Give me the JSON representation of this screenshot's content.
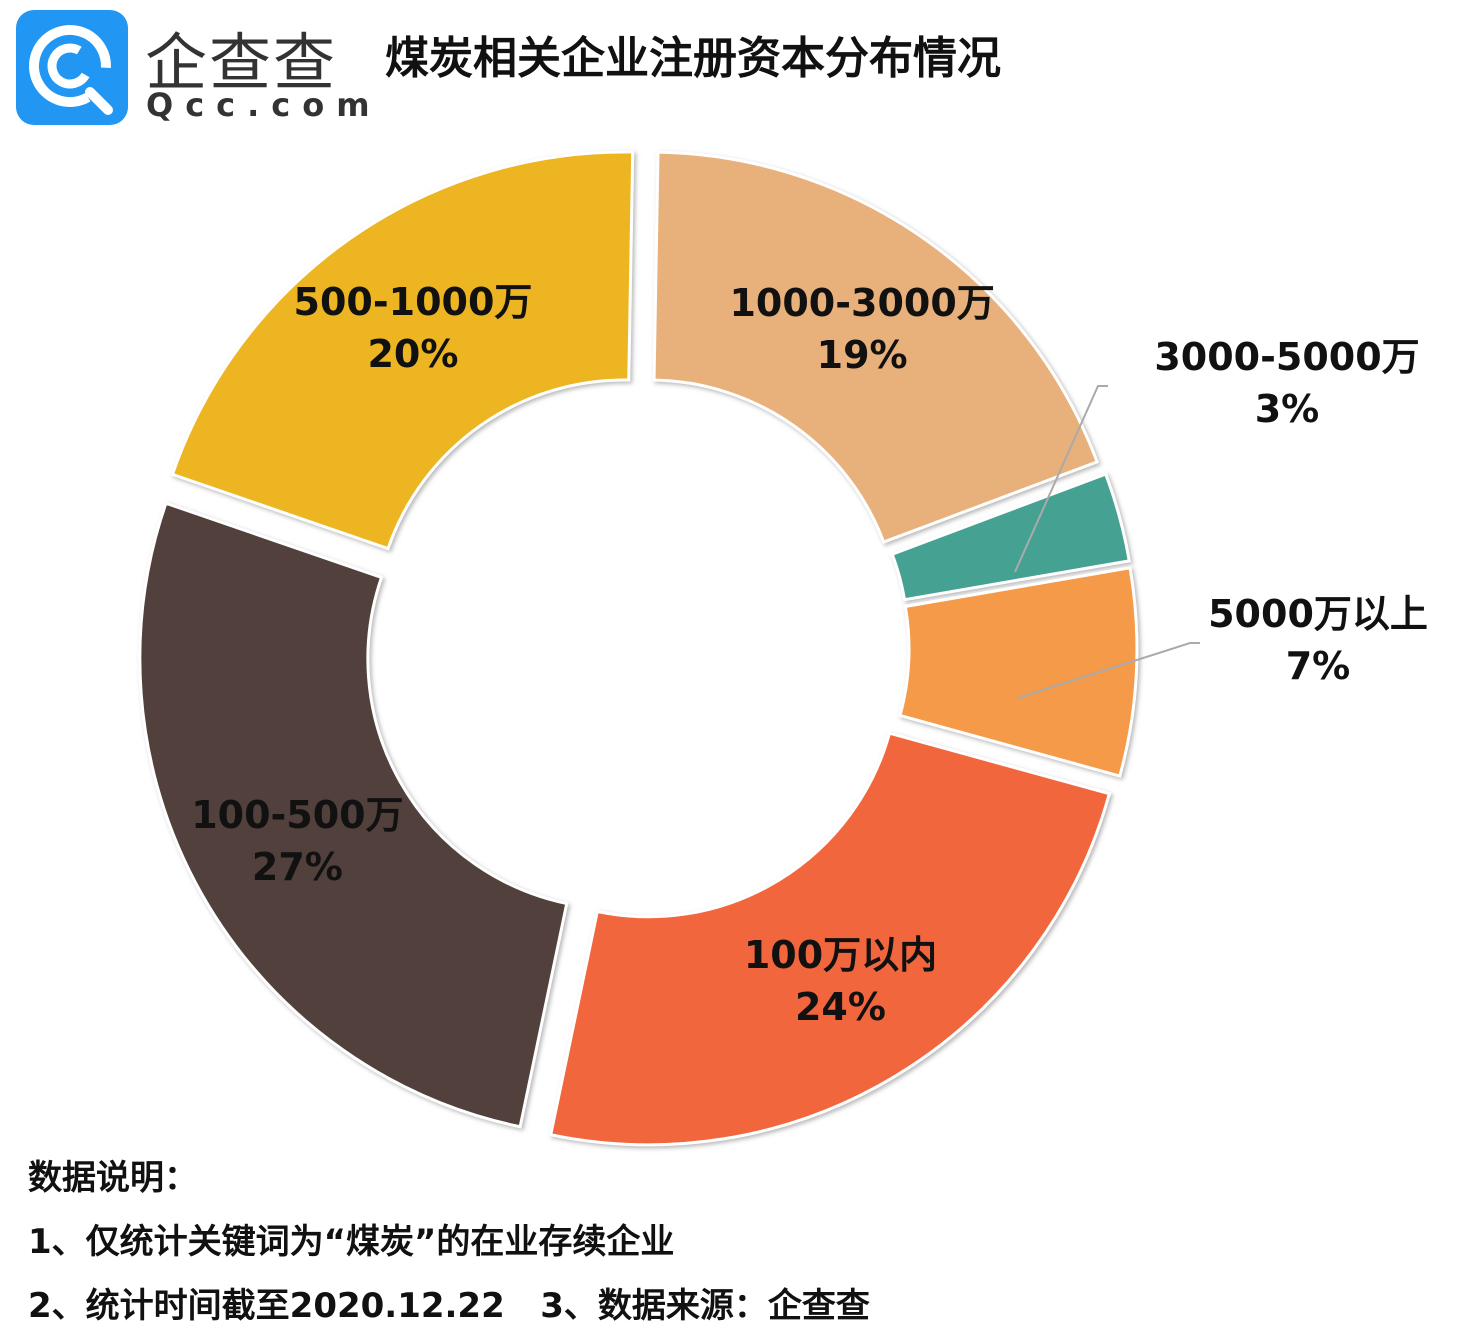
{
  "logo": {
    "name_cn": "企查查",
    "name_en": "Qcc.com",
    "color": "#2196f3"
  },
  "title": "煤炭相关企业注册资本分布情况",
  "chart_data": {
    "type": "pie",
    "donut": true,
    "title": "煤炭相关企业注册资本分布情况",
    "unit": "%",
    "slices": [
      {
        "label": "1000-3000万",
        "value": 19,
        "display": "19%",
        "color": "#E8B07A"
      },
      {
        "label": "3000-5000万",
        "value": 3,
        "display": "3%",
        "color": "#45A293"
      },
      {
        "label": "5000万以上",
        "value": 7,
        "display": "7%",
        "color": "#F59A48"
      },
      {
        "label": "100万以内",
        "value": 24,
        "display": "24%",
        "color": "#F2663C"
      },
      {
        "label": "100-500万",
        "value": 27,
        "display": "27%",
        "color": "#51403A"
      },
      {
        "label": "500-1000万",
        "value": 20,
        "display": "20%",
        "color": "#EDB521"
      }
    ]
  },
  "notes": {
    "heading": "数据说明：",
    "line1": "1、仅统计关键词为“煤炭”的在业存续企业",
    "line2": "2、统计时间截至2020.12.22   3、数据来源：企查查"
  }
}
